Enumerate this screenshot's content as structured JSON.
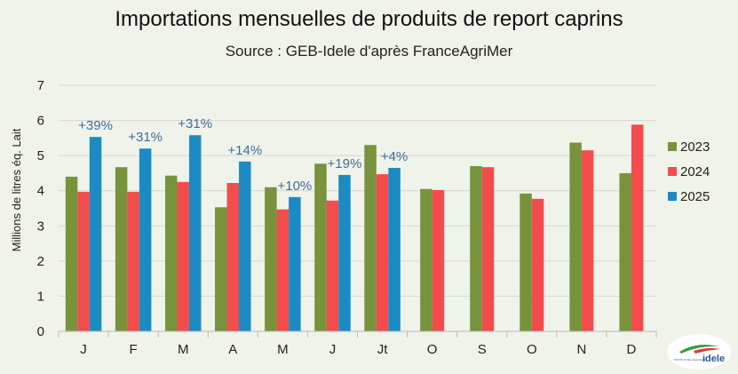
{
  "colors": {
    "2023": "#77933c",
    "2024": "#f24c4c",
    "2025": "#1c8bc4",
    "percent": "#3f6a9e"
  },
  "logo": {
    "text": "idele",
    "caption": "INSTITUT DE L'ÉLEVAGE"
  },
  "chart_data": {
    "type": "bar",
    "title": "Importations mensuelles de produits de report caprins",
    "subtitle": "Source : GEB-Idele d'après FranceAgriMer",
    "ylabel": "Millions de litres éq. Lait",
    "xlabel": "",
    "ylim": [
      0,
      7
    ],
    "yticks": [
      0,
      1,
      2,
      3,
      4,
      5,
      6,
      7
    ],
    "grid": true,
    "legend_position": "right",
    "categories": [
      "J",
      "F",
      "M",
      "A",
      "M",
      "J",
      "Jt",
      "O",
      "S",
      "O",
      "N",
      "D"
    ],
    "series": [
      {
        "name": "2023",
        "values": [
          4.4,
          4.67,
          4.43,
          3.53,
          4.1,
          4.77,
          5.3,
          4.05,
          4.7,
          3.92,
          5.37,
          4.5
        ]
      },
      {
        "name": "2024",
        "values": [
          3.97,
          3.97,
          4.25,
          4.22,
          3.47,
          3.72,
          4.47,
          4.02,
          4.67,
          3.77,
          5.15,
          5.88
        ]
      },
      {
        "name": "2025",
        "values": [
          5.53,
          5.2,
          5.58,
          4.83,
          3.82,
          4.45,
          4.65,
          null,
          null,
          null,
          null,
          null
        ]
      }
    ],
    "annotations": [
      "+39%",
      "+31%",
      "+31%",
      "+14%",
      "+10%",
      "+19%",
      "+4%",
      null,
      null,
      null,
      null,
      null
    ]
  }
}
